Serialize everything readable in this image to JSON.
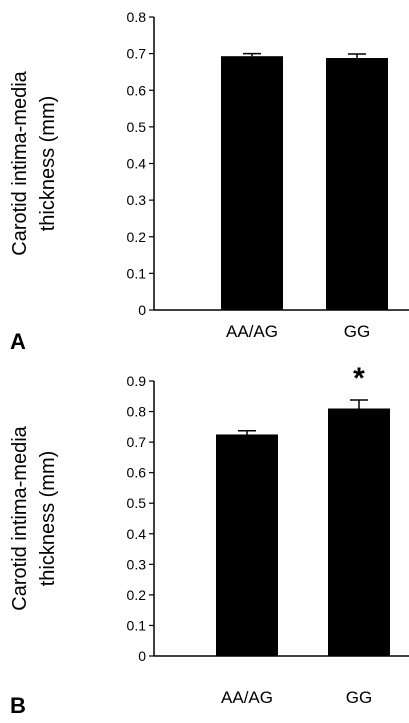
{
  "chart_data": [
    {
      "type": "bar",
      "panel": "A",
      "categories": [
        "AA/AG",
        "GG"
      ],
      "values": [
        0.693,
        0.688
      ],
      "errors": [
        0.007,
        0.011
      ],
      "ylabel_lines": [
        "Carotid intima-media",
        "thickness (mm)"
      ],
      "ylim": [
        0,
        0.8
      ],
      "yticks": [
        0,
        0.1,
        0.2,
        0.3,
        0.4,
        0.5,
        0.6,
        0.7,
        0.8
      ],
      "ytick_labels": [
        "0",
        "0.1",
        "0.2",
        "0.3",
        "0.4",
        "0.5",
        "0.6",
        "0.7",
        "0.8"
      ],
      "annotations": [
        "",
        ""
      ],
      "grid": false,
      "bar_color": "#000000"
    },
    {
      "type": "bar",
      "panel": "B",
      "categories": [
        "AA/AG",
        "GG"
      ],
      "values": [
        0.725,
        0.81
      ],
      "errors": [
        0.012,
        0.028
      ],
      "ylabel_lines": [
        "Carotid intima-media",
        "thickness (mm)"
      ],
      "ylim": [
        0,
        0.9
      ],
      "yticks": [
        0,
        0.1,
        0.2,
        0.3,
        0.4,
        0.5,
        0.6,
        0.7,
        0.8,
        0.9
      ],
      "ytick_labels": [
        "0",
        "0.1",
        "0.2",
        "0.3",
        "0.4",
        "0.5",
        "0.6",
        "0.7",
        "0.8",
        "0.9"
      ],
      "annotations": [
        "",
        "*"
      ],
      "grid": false,
      "bar_color": "#000000"
    }
  ]
}
